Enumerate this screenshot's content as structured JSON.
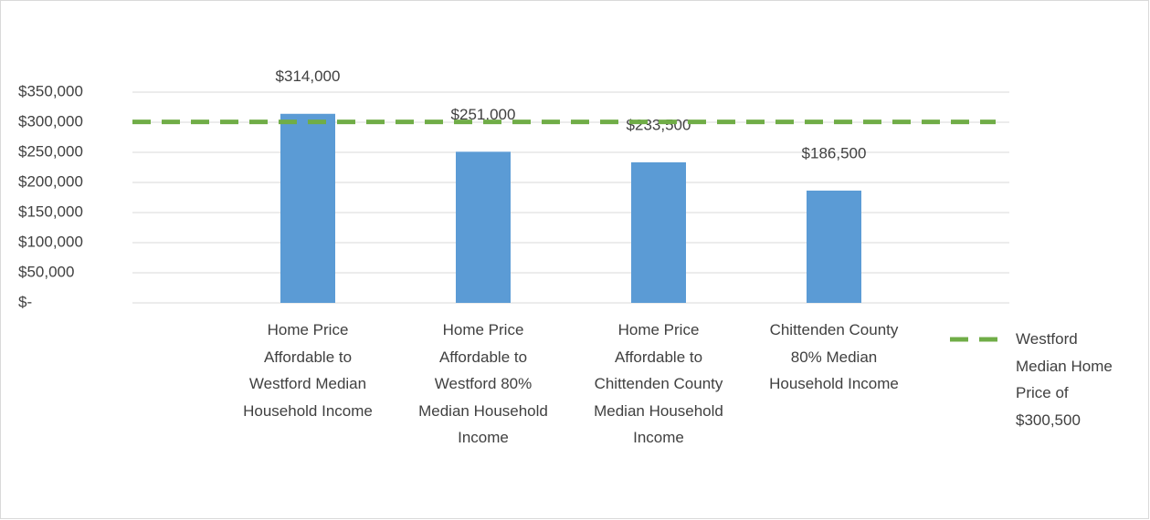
{
  "chart_data": {
    "type": "bar",
    "categories": [
      null,
      "Home Price Affordable to Westford Median Household Income",
      "Home Price Affordable to Westford 80% Median Household Income",
      "Home Price Affordable to Chittenden County Median Household Income",
      "Chittenden County 80% Median Household Income",
      null
    ],
    "values": [
      null,
      314000,
      251000,
      233500,
      186500,
      null
    ],
    "value_labels": [
      null,
      "$314,000",
      "$251,000",
      "$233,500",
      "$186,500",
      null
    ],
    "color": "#5b9bd5",
    "reference_line": {
      "name": "Westford Median Home Price of $300,500",
      "value": 300500,
      "color": "#70ad47"
    },
    "ylim": [
      0,
      350000
    ],
    "yticks": [
      {
        "value": 0,
        "label": "$-"
      },
      {
        "value": 50000,
        "label": "$50,000"
      },
      {
        "value": 100000,
        "label": "$100,000"
      },
      {
        "value": 150000,
        "label": "$150,000"
      },
      {
        "value": 200000,
        "label": "$200,000"
      },
      {
        "value": 250000,
        "label": "$250,000"
      },
      {
        "value": 300000,
        "label": "$300,000"
      },
      {
        "value": 350000,
        "label": "$350,000"
      }
    ],
    "grid": true,
    "legend": "right"
  }
}
